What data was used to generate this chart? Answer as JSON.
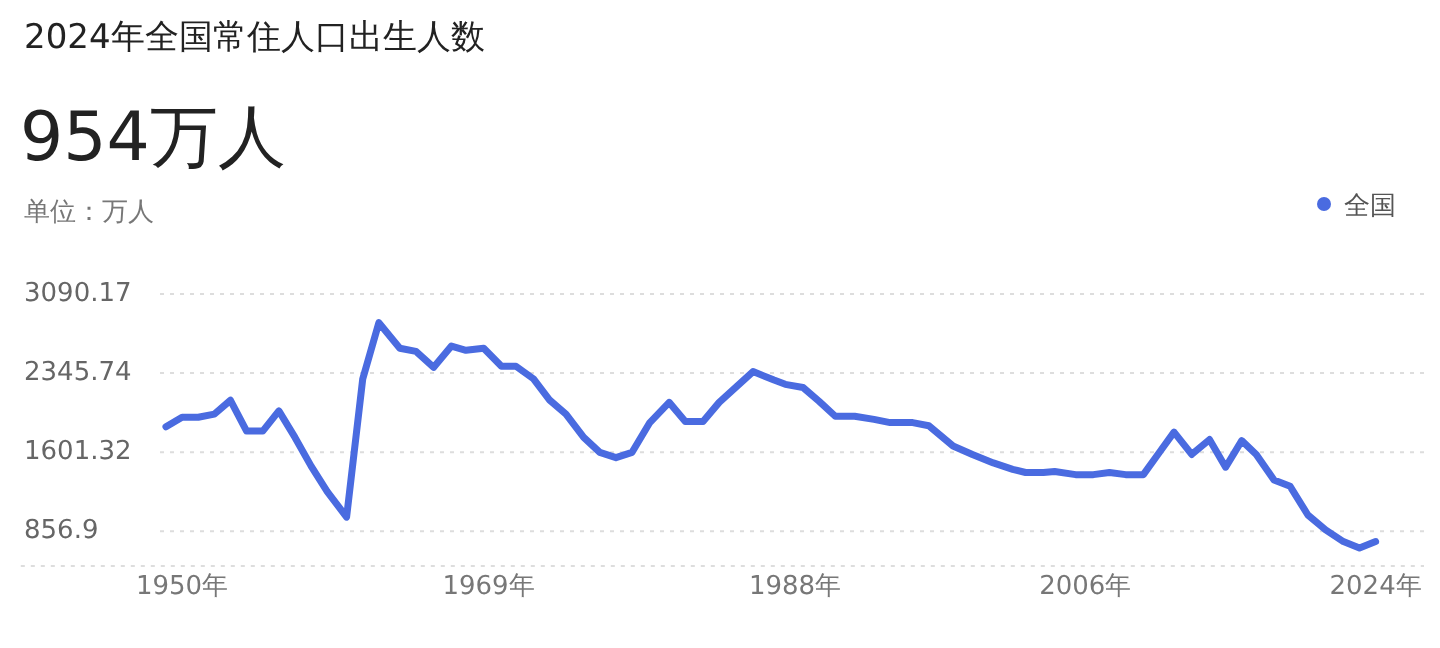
{
  "chart_data": {
    "type": "line",
    "title": "2024年全国常住人口出生人数",
    "subtitle": "954万人",
    "annotations": [
      "单位：万人"
    ],
    "x": [
      1949,
      1950,
      1951,
      1952,
      1953,
      1954,
      1955,
      1956,
      1957,
      1958,
      1959,
      1960.2,
      1961.2,
      1962.2,
      1963.5,
      1964.5,
      1965.6,
      1966.7,
      1967.6,
      1968.7,
      1969.8,
      1970.7,
      1971.8,
      1972.8,
      1973.8,
      1974.9,
      1975.9,
      1976.9,
      1977.9,
      1979,
      1980.2,
      1981.2,
      1982.3,
      1983.3,
      1985.4,
      1986.7,
      1987.4,
      1988.5,
      1989.5,
      1990.5,
      1991.7,
      1992.9,
      1993.9,
      1995.3,
      1996.3,
      1997.8,
      1999,
      2000.3,
      2001.5,
      2002.3,
      2003.4,
      2004.1,
      2005.4,
      2006.5,
      2007.5,
      2008.5,
      2009.6,
      2010.6,
      2011.5,
      2012.6,
      2013.7,
      2014.7,
      2015.7,
      2016.6,
      2017.7,
      2018.7,
      2019.8,
      2020.9,
      2022,
      2023,
      2024
    ],
    "series": [
      {
        "name": "全国",
        "color": "#4a6be0",
        "values": [
          1840,
          1930,
          1930,
          1960,
          2090,
          1800,
          1800,
          1990,
          1740,
          1470,
          1230,
          990,
          2290,
          2820,
          2580,
          2550,
          2400,
          2600,
          2560,
          2580,
          2410,
          2410,
          2290,
          2090,
          1960,
          1740,
          1600,
          1550,
          1600,
          1880,
          2070,
          1890,
          1890,
          2070,
          2360,
          2280,
          2240,
          2210,
          2080,
          1940,
          1940,
          1910,
          1880,
          1880,
          1850,
          1660,
          1580,
          1500,
          1440,
          1410,
          1410,
          1420,
          1390,
          1390,
          1410,
          1390,
          1390,
          1600,
          1790,
          1580,
          1720,
          1460,
          1710,
          1580,
          1340,
          1280,
          1010,
          870,
          760,
          700,
          760
        ]
      }
    ],
    "xlim": [
      1940,
      2027
    ],
    "xticks": [
      {
        "value": 1950,
        "label": "1950年"
      },
      {
        "value": 1969,
        "label": "1969年"
      },
      {
        "value": 1988,
        "label": "1988年"
      },
      {
        "value": 2006,
        "label": "2006年"
      },
      {
        "value": 2024,
        "label": "2024年"
      }
    ],
    "ylim": [
      530,
      3090.17
    ],
    "yticks": [
      856.9,
      1601.32,
      2345.74,
      3090.17
    ],
    "grid": "y",
    "legend": "top right",
    "marker": "none",
    "line_style": "solid"
  }
}
